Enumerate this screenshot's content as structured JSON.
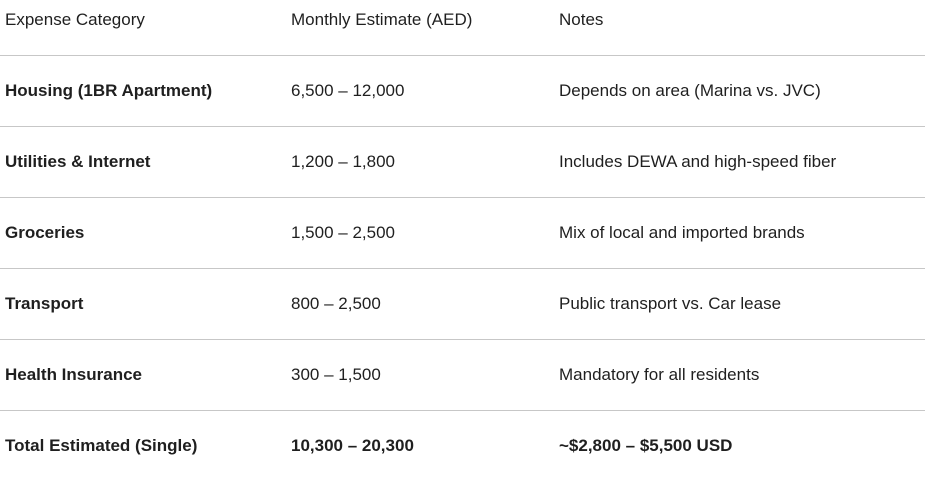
{
  "table": {
    "headers": [
      "Expense Category",
      "Monthly Estimate (AED)",
      "Notes"
    ],
    "rows": [
      [
        "Housing (1BR Apartment)",
        "6,500 – 12,000",
        "Depends on area (Marina vs. JVC)"
      ],
      [
        "Utilities & Internet",
        "1,200 – 1,800",
        "Includes DEWA and high-speed fiber"
      ],
      [
        "Groceries",
        "1,500 – 2,500",
        "Mix of local and imported brands"
      ],
      [
        "Transport",
        "800 – 2,500",
        "Public transport vs. Car lease"
      ],
      [
        "Health Insurance",
        "300 – 1,500",
        "Mandatory for all residents"
      ],
      [
        "Total Estimated (Single)",
        "10,300 – 20,300",
        "~$2,800 – $5,500 USD"
      ]
    ]
  }
}
